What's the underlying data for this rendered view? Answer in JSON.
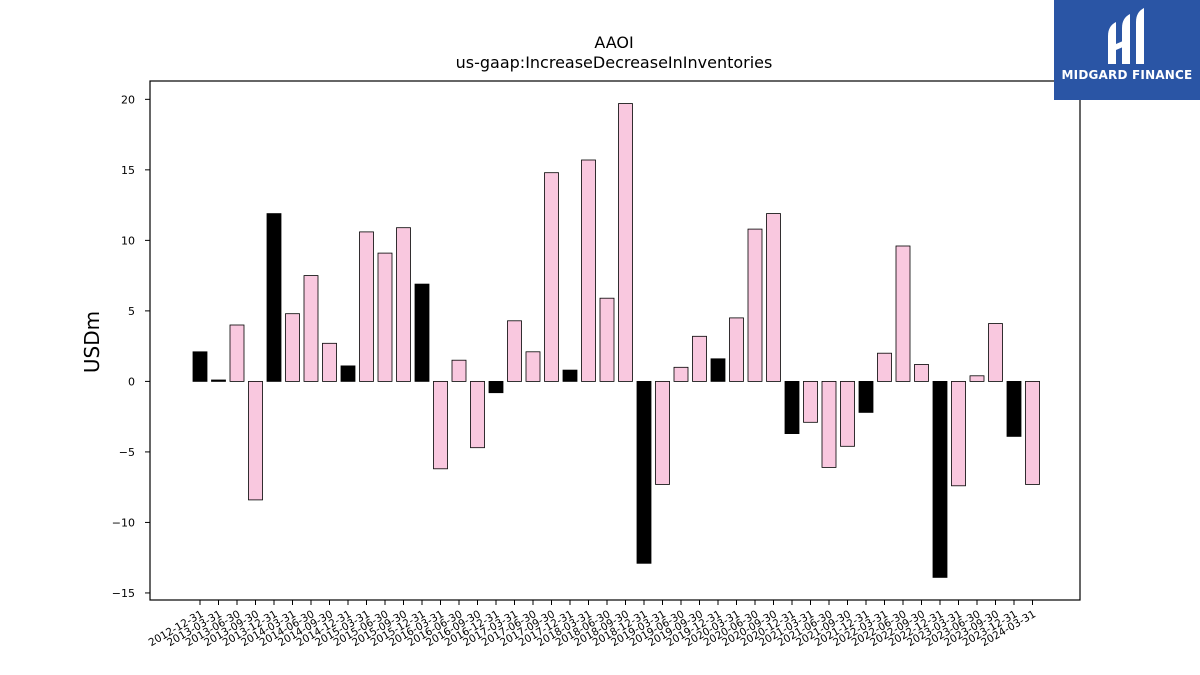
{
  "branding": {
    "name": "MIDGARD FINANCE",
    "bg_color": "#2a55a5"
  },
  "chart_data": {
    "type": "bar",
    "title": "AAOI",
    "subtitle": "us-gaap:IncreaseDecreaseInInventories",
    "xlabel": "",
    "ylabel": "USDm",
    "ylim": [
      -15.5,
      21.3
    ],
    "yticks": [
      20,
      15,
      10,
      5,
      0,
      -5,
      -10,
      -15
    ],
    "ytick_labels": [
      "20",
      "15",
      "10",
      "5",
      "0",
      "−5",
      "−10",
      "−15"
    ],
    "grid": false,
    "colors": {
      "pink": "#f9c8df",
      "black": "#000000",
      "edge": "#000000"
    },
    "categories": [
      "2012-12-31",
      "2013-03-31",
      "2013-06-30",
      "2013-09-30",
      "2013-12-31",
      "2014-03-31",
      "2014-06-30",
      "2014-09-30",
      "2014-12-31",
      "2015-03-31",
      "2015-06-30",
      "2015-09-30",
      "2015-12-31",
      "2016-03-31",
      "2016-06-30",
      "2016-09-30",
      "2016-12-31",
      "2017-03-31",
      "2017-06-30",
      "2017-09-30",
      "2017-12-31",
      "2018-03-31",
      "2018-06-30",
      "2018-09-30",
      "2018-12-31",
      "2019-03-31",
      "2019-06-30",
      "2019-09-30",
      "2019-12-31",
      "2020-03-31",
      "2020-06-30",
      "2020-09-30",
      "2020-12-31",
      "2021-03-31",
      "2021-06-30",
      "2021-09-30",
      "2021-12-31",
      "2022-03-31",
      "2022-06-30",
      "2022-09-30",
      "2022-12-31",
      "2023-03-31",
      "2023-06-30",
      "2023-09-30",
      "2023-12-31",
      "2024-03-31"
    ],
    "values": [
      2.1,
      0.1,
      4.0,
      -8.4,
      11.9,
      4.8,
      7.5,
      2.7,
      1.1,
      10.6,
      9.1,
      10.9,
      6.9,
      -6.2,
      1.5,
      -4.7,
      -0.8,
      4.3,
      2.1,
      14.8,
      0.8,
      15.7,
      5.9,
      19.7,
      -12.9,
      -7.3,
      1.0,
      3.2,
      1.6,
      4.5,
      10.8,
      11.9,
      -3.7,
      -2.9,
      -6.1,
      -4.6,
      -2.2,
      2.0,
      9.6,
      1.2,
      -13.9,
      -7.4,
      0.4,
      4.1,
      -3.9,
      -7.3
    ],
    "bar_colors": [
      "black",
      "black",
      "pink",
      "pink",
      "black",
      "pink",
      "pink",
      "pink",
      "black",
      "pink",
      "pink",
      "pink",
      "black",
      "pink",
      "pink",
      "pink",
      "black",
      "pink",
      "pink",
      "pink",
      "black",
      "pink",
      "pink",
      "pink",
      "black",
      "pink",
      "pink",
      "pink",
      "black",
      "pink",
      "pink",
      "pink",
      "black",
      "pink",
      "pink",
      "pink",
      "black",
      "pink",
      "pink",
      "pink",
      "black",
      "pink",
      "pink",
      "pink",
      "black",
      "pink"
    ]
  }
}
